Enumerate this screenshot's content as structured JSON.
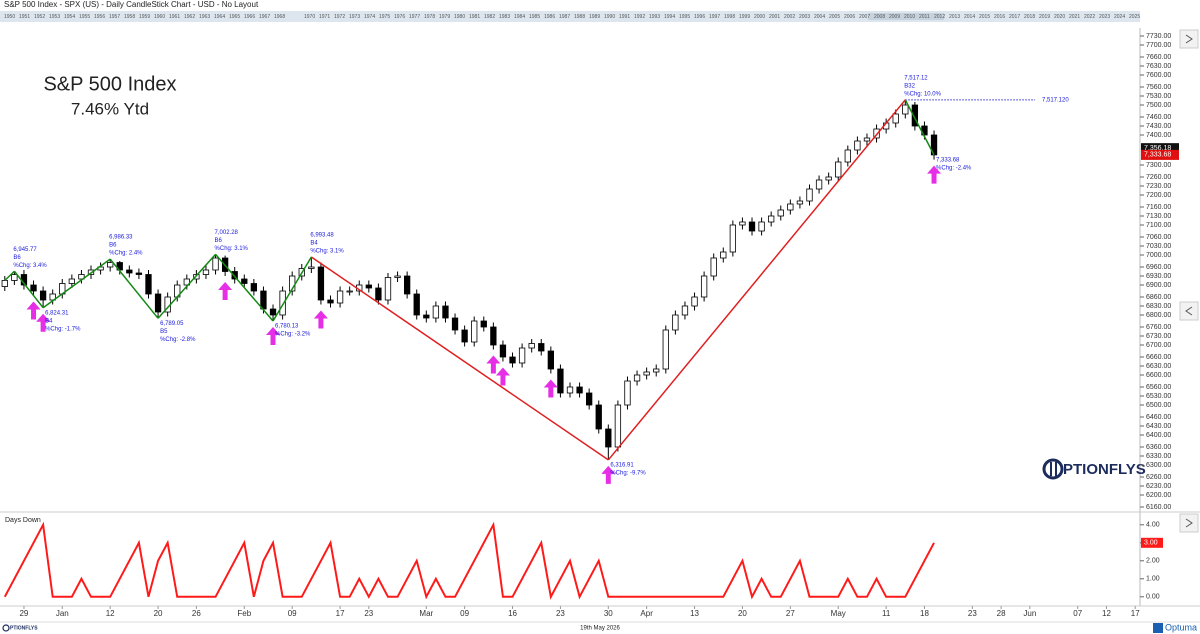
{
  "header": {
    "title": "S&P 500 Index - SPX (US) - Daily CandleStick Chart - USD - No Layout",
    "years": [
      1950,
      1951,
      1952,
      1953,
      1954,
      1955,
      1956,
      1957,
      1958,
      1959,
      1960,
      1961,
      1962,
      1963,
      1964,
      1965,
      1966,
      1967,
      1968,
      1970,
      1971,
      1972,
      1973,
      1974,
      1975,
      1976,
      1977,
      1978,
      1979,
      1980,
      1981,
      1982,
      1983,
      1984,
      1985,
      1986,
      1987,
      1988,
      1989,
      1990,
      1991,
      1992,
      1993,
      1994,
      1995,
      1996,
      1997,
      1998,
      1999,
      2000,
      2001,
      2002,
      2003,
      2004,
      2005,
      2006,
      2007,
      2008,
      2009,
      2010,
      2011,
      2012,
      2013,
      2014,
      2015,
      2016,
      2017,
      2018,
      2019,
      2020,
      2021,
      2022,
      2023,
      2024,
      2025
    ]
  },
  "chart_data": [
    {
      "type": "candlestick",
      "title": "S&P 500 Index",
      "subtitle": "7.46% Ytd",
      "xlim": [
        -0.5,
        118.5
      ],
      "xticks": [
        {
          "value": 2,
          "label": "29"
        },
        {
          "value": 6,
          "label": "Jan"
        },
        {
          "value": 11,
          "label": "12"
        },
        {
          "value": 16,
          "label": "20"
        },
        {
          "value": 20,
          "label": "26"
        },
        {
          "value": 25,
          "label": "Feb"
        },
        {
          "value": 30,
          "label": "09"
        },
        {
          "value": 35,
          "label": "17"
        },
        {
          "value": 38,
          "label": "23"
        },
        {
          "value": 44,
          "label": "Mar"
        },
        {
          "value": 48,
          "label": "09"
        },
        {
          "value": 53,
          "label": "16"
        },
        {
          "value": 58,
          "label": "23"
        },
        {
          "value": 63,
          "label": "30"
        },
        {
          "value": 67,
          "label": "Apr"
        },
        {
          "value": 72,
          "label": "13"
        },
        {
          "value": 77,
          "label": "20"
        },
        {
          "value": 82,
          "label": "27"
        },
        {
          "value": 87,
          "label": "May"
        },
        {
          "value": 92,
          "label": "11"
        },
        {
          "value": 96,
          "label": "18"
        },
        {
          "value": 101,
          "label": "23"
        },
        {
          "value": 104,
          "label": "28"
        },
        {
          "value": 107,
          "label": "Jun"
        },
        {
          "value": 112,
          "label": "07"
        },
        {
          "value": 115,
          "label": "12"
        },
        {
          "value": 118,
          "label": "17"
        }
      ],
      "open": [
        6895,
        6915,
        6935,
        6900,
        6880,
        6850,
        6870,
        6905,
        6920,
        6935,
        6950,
        6960,
        6975,
        6950,
        6940,
        6935,
        6870,
        6810,
        6860,
        6900,
        6920,
        6935,
        6950,
        6990,
        6945,
        6920,
        6905,
        6880,
        6820,
        6800,
        6880,
        6930,
        6955,
        6960,
        6850,
        6840,
        6880,
        6880,
        6900,
        6890,
        6850,
        6925,
        6930,
        6870,
        6800,
        6790,
        6830,
        6790,
        6750,
        6710,
        6780,
        6760,
        6700,
        6660,
        6640,
        6690,
        6705,
        6680,
        6620,
        6540,
        6560,
        6540,
        6500,
        6420,
        6360,
        6500,
        6580,
        6600,
        6610,
        6620,
        6750,
        6800,
        6830,
        6860,
        6930,
        6990,
        7010,
        7100,
        7110,
        7080,
        7110,
        7130,
        7150,
        7170,
        7180,
        7220,
        7250,
        7260,
        7310,
        7350,
        7380,
        7390,
        7420,
        7440,
        7470,
        7500,
        7430,
        7400
      ],
      "high": [
        6930,
        6945.77,
        6950,
        6915,
        6895,
        6885,
        6920,
        6935,
        6950,
        6965,
        6975,
        6986.33,
        6980,
        6965,
        6955,
        6950,
        6885,
        6875,
        6915,
        6935,
        6950,
        6965,
        7002.28,
        6998,
        6960,
        6935,
        6920,
        6895,
        6835,
        6895,
        6945,
        6970,
        6993.48,
        6975,
        6865,
        6895,
        6895,
        6915,
        6915,
        6905,
        6940,
        6945,
        6945,
        6885,
        6815,
        6845,
        6845,
        6805,
        6765,
        6795,
        6795,
        6775,
        6715,
        6675,
        6705,
        6720,
        6720,
        6695,
        6635,
        6575,
        6575,
        6555,
        6515,
        6435,
        6515,
        6595,
        6615,
        6625,
        6635,
        6765,
        6815,
        6845,
        6875,
        6945,
        7005,
        7025,
        7115,
        7125,
        7125,
        7125,
        7145,
        7165,
        7185,
        7195,
        7235,
        7265,
        7275,
        7325,
        7365,
        7395,
        7405,
        7435,
        7455,
        7485,
        7517.12,
        7510,
        7445,
        7415
      ],
      "low": [
        6880,
        6900,
        6885,
        6865,
        6824.31,
        6835,
        6855,
        6890,
        6905,
        6920,
        6935,
        6945,
        6935,
        6925,
        6920,
        6855,
        6789.05,
        6795,
        6845,
        6885,
        6905,
        6920,
        6935,
        6930,
        6905,
        6890,
        6865,
        6805,
        6780.13,
        6785,
        6865,
        6915,
        6940,
        6835,
        6825,
        6825,
        6865,
        6865,
        6875,
        6835,
        6835,
        6910,
        6855,
        6785,
        6775,
        6775,
        6775,
        6735,
        6695,
        6695,
        6745,
        6685,
        6645,
        6625,
        6625,
        6675,
        6665,
        6605,
        6525,
        6525,
        6525,
        6485,
        6405,
        6316.91,
        6345,
        6485,
        6565,
        6585,
        6595,
        6605,
        6735,
        6785,
        6815,
        6845,
        6915,
        6975,
        6995,
        7085,
        7065,
        7065,
        7095,
        7115,
        7135,
        7155,
        7165,
        7205,
        7235,
        7245,
        7295,
        7335,
        7365,
        7375,
        7405,
        7425,
        7455,
        7415,
        7385,
        7318
      ],
      "close": [
        6915,
        6935,
        6900,
        6880,
        6850,
        6870,
        6905,
        6920,
        6935,
        6950,
        6960,
        6975,
        6950,
        6940,
        6935,
        6870,
        6810,
        6860,
        6900,
        6920,
        6935,
        6950,
        6990,
        6945,
        6920,
        6905,
        6880,
        6820,
        6800,
        6880,
        6930,
        6955,
        6960,
        6850,
        6840,
        6880,
        6880,
        6900,
        6890,
        6850,
        6925,
        6930,
        6870,
        6800,
        6790,
        6830,
        6790,
        6750,
        6710,
        6780,
        6760,
        6700,
        6660,
        6640,
        6690,
        6705,
        6680,
        6620,
        6540,
        6560,
        6540,
        6500,
        6420,
        6360,
        6500,
        6580,
        6600,
        6610,
        6620,
        6750,
        6800,
        6830,
        6860,
        6930,
        6990,
        7010,
        7100,
        7110,
        7080,
        7110,
        7130,
        7150,
        7170,
        7180,
        7220,
        7250,
        7260,
        7310,
        7350,
        7380,
        7390,
        7420,
        7440,
        7470,
        7500,
        7430,
        7400,
        7333.68
      ],
      "up_color": "#ffffff",
      "down_color": "#000000",
      "ylim": [
        6150,
        7750
      ],
      "yticks": [
        {
          "value": 7730,
          "label": "7730.00"
        },
        {
          "value": 7700,
          "label": "7700.00"
        },
        {
          "value": 7660,
          "label": "7660.00"
        },
        {
          "value": 7630,
          "label": "7630.00"
        },
        {
          "value": 7600,
          "label": "7600.00"
        },
        {
          "value": 7560,
          "label": "7560.00"
        },
        {
          "value": 7530,
          "label": "7530.00"
        },
        {
          "value": 7500,
          "label": "7500.00"
        },
        {
          "value": 7460,
          "label": "7460.00"
        },
        {
          "value": 7430,
          "label": "7430.00"
        },
        {
          "value": 7400,
          "label": "7400.00"
        },
        {
          "value": 7300,
          "label": "7300.00"
        },
        {
          "value": 7260,
          "label": "7260.00"
        },
        {
          "value": 7230,
          "label": "7230.00"
        },
        {
          "value": 7200,
          "label": "7200.00"
        },
        {
          "value": 7160,
          "label": "7160.00"
        },
        {
          "value": 7130,
          "label": "7130.00"
        },
        {
          "value": 7100,
          "label": "7100.00"
        },
        {
          "value": 7060,
          "label": "7060.00"
        },
        {
          "value": 7030,
          "label": "7030.00"
        },
        {
          "value": 7000,
          "label": "7000.00"
        },
        {
          "value": 6960,
          "label": "6960.00"
        },
        {
          "value": 6930,
          "label": "6930.00"
        },
        {
          "value": 6900,
          "label": "6900.00"
        },
        {
          "value": 6860,
          "label": "6860.00"
        },
        {
          "value": 6830,
          "label": "6830.00"
        },
        {
          "value": 6800,
          "label": "6800.00"
        },
        {
          "value": 6760,
          "label": "6760.00"
        },
        {
          "value": 6730,
          "label": "6730.00"
        },
        {
          "value": 6700,
          "label": "6700.00"
        },
        {
          "value": 6660,
          "label": "6660.00"
        },
        {
          "value": 6630,
          "label": "6630.00"
        },
        {
          "value": 6600,
          "label": "6600.00"
        },
        {
          "value": 6560,
          "label": "6560.00"
        },
        {
          "value": 6530,
          "label": "6530.00"
        },
        {
          "value": 6500,
          "label": "6500.00"
        },
        {
          "value": 6460,
          "label": "6460.00"
        },
        {
          "value": 6430,
          "label": "6430.00"
        },
        {
          "value": 6400,
          "label": "6400.00"
        },
        {
          "value": 6360,
          "label": "6360.00"
        },
        {
          "value": 6330,
          "label": "6330.00"
        },
        {
          "value": 6300,
          "label": "6300.00"
        },
        {
          "value": 6260,
          "label": "6260.00"
        },
        {
          "value": 6230,
          "label": "6230.00"
        },
        {
          "value": 6200,
          "label": "6200.00"
        },
        {
          "value": 6160,
          "label": "6160.00"
        }
      ],
      "zigzag": {
        "pivots": [
          {
            "x": 0,
            "value": 6915
          },
          {
            "x": 1,
            "value": 6945.77,
            "value_label": "6,945.77",
            "bars": "B6",
            "change": "%Chg: 3.4%"
          },
          {
            "x": 4,
            "value": 6824.31,
            "value_label": "6,824.31",
            "bars": "B4",
            "change": "%Chg: -1.7%"
          },
          {
            "x": 11,
            "value": 6986.33,
            "value_label": "6,986.33",
            "bars": "B6",
            "change": "%Chg: 2.4%"
          },
          {
            "x": 16,
            "value": 6789.05,
            "value_label": "6,789.05",
            "bars": "B5",
            "change": "%Chg: -2.8%"
          },
          {
            "x": 22,
            "value": 7002.28,
            "value_label": "7,002.28",
            "bars": "B6",
            "change": "%Chg: 3.1%"
          },
          {
            "x": 28,
            "value": 6780.13,
            "value_label": "6,780.13",
            "change": "%Chg: -3.2%"
          },
          {
            "x": 32,
            "value": 6993.48,
            "value_label": "6,993.48",
            "bars": "B4",
            "change": "%Chg: 3.1%"
          },
          {
            "x": 63,
            "value": 6316.91,
            "value_label": "6,316.91",
            "change": "%Chg: -9.7%"
          },
          {
            "x": 94,
            "value": 7517.12,
            "value_label": "7,517.12",
            "bars": "B32",
            "change": "%Chg: 10.0%"
          },
          {
            "x": 97,
            "value": 7333.68,
            "value_label": "7,333.68",
            "change": "%Chg: -2.4%"
          }
        ],
        "colors": [
          "#138a13",
          "#138a13",
          "#138a13",
          "#138a13",
          "#138a13",
          "#138a13",
          "#138a13",
          "#e02020",
          "#e02020",
          "#138a13"
        ]
      },
      "signals": {
        "x": [
          3,
          4,
          23,
          28,
          33,
          51,
          52,
          57,
          63,
          97
        ],
        "color": "#e62ee6"
      },
      "reference_line": {
        "value": 7517.12,
        "label": "7,517.120",
        "color": "#2a2ad0"
      },
      "price_labels": [
        {
          "value": 7356.18,
          "label": "7,356.18",
          "color": "#111111"
        },
        {
          "value": 7333.68,
          "label": "7,333.68",
          "color": "#e01010"
        }
      ]
    },
    {
      "type": "line",
      "title": "Days Down",
      "values": [
        0,
        1,
        2,
        3,
        4,
        0,
        0,
        0,
        1,
        0,
        0,
        0,
        1,
        2,
        3,
        0,
        2,
        3,
        0,
        0,
        0,
        0,
        0,
        1,
        2,
        3,
        0,
        2,
        3,
        0,
        0,
        0,
        1,
        2,
        3,
        0,
        0,
        1,
        0,
        1,
        0,
        0,
        1,
        2,
        0,
        1,
        0,
        0,
        1,
        2,
        3,
        4,
        0,
        0,
        1,
        2,
        3,
        0,
        1,
        2,
        0,
        1,
        2,
        0,
        0,
        0,
        0,
        0,
        0,
        0,
        0,
        0,
        0,
        0,
        0,
        0,
        1,
        2,
        0,
        1,
        0,
        0,
        1,
        2,
        0,
        0,
        0,
        0,
        1,
        0,
        0,
        1,
        0,
        0,
        0,
        1,
        2,
        3
      ],
      "color": "#ff1a1a",
      "ylim": [
        -0.4,
        4.6
      ],
      "yticks": [
        {
          "value": 4,
          "label": "4.00"
        },
        {
          "value": 3,
          "label": "3.00"
        },
        {
          "value": 2,
          "label": "2.00"
        },
        {
          "value": 1,
          "label": "1.00"
        },
        {
          "value": 0,
          "label": "0.00"
        }
      ],
      "current_label": "3.00"
    }
  ],
  "branding": {
    "watermark": "PTIONFLYS",
    "footer_logo": "PTIONFLYS",
    "date": "19th May 2026",
    "brand": "Optuma"
  }
}
